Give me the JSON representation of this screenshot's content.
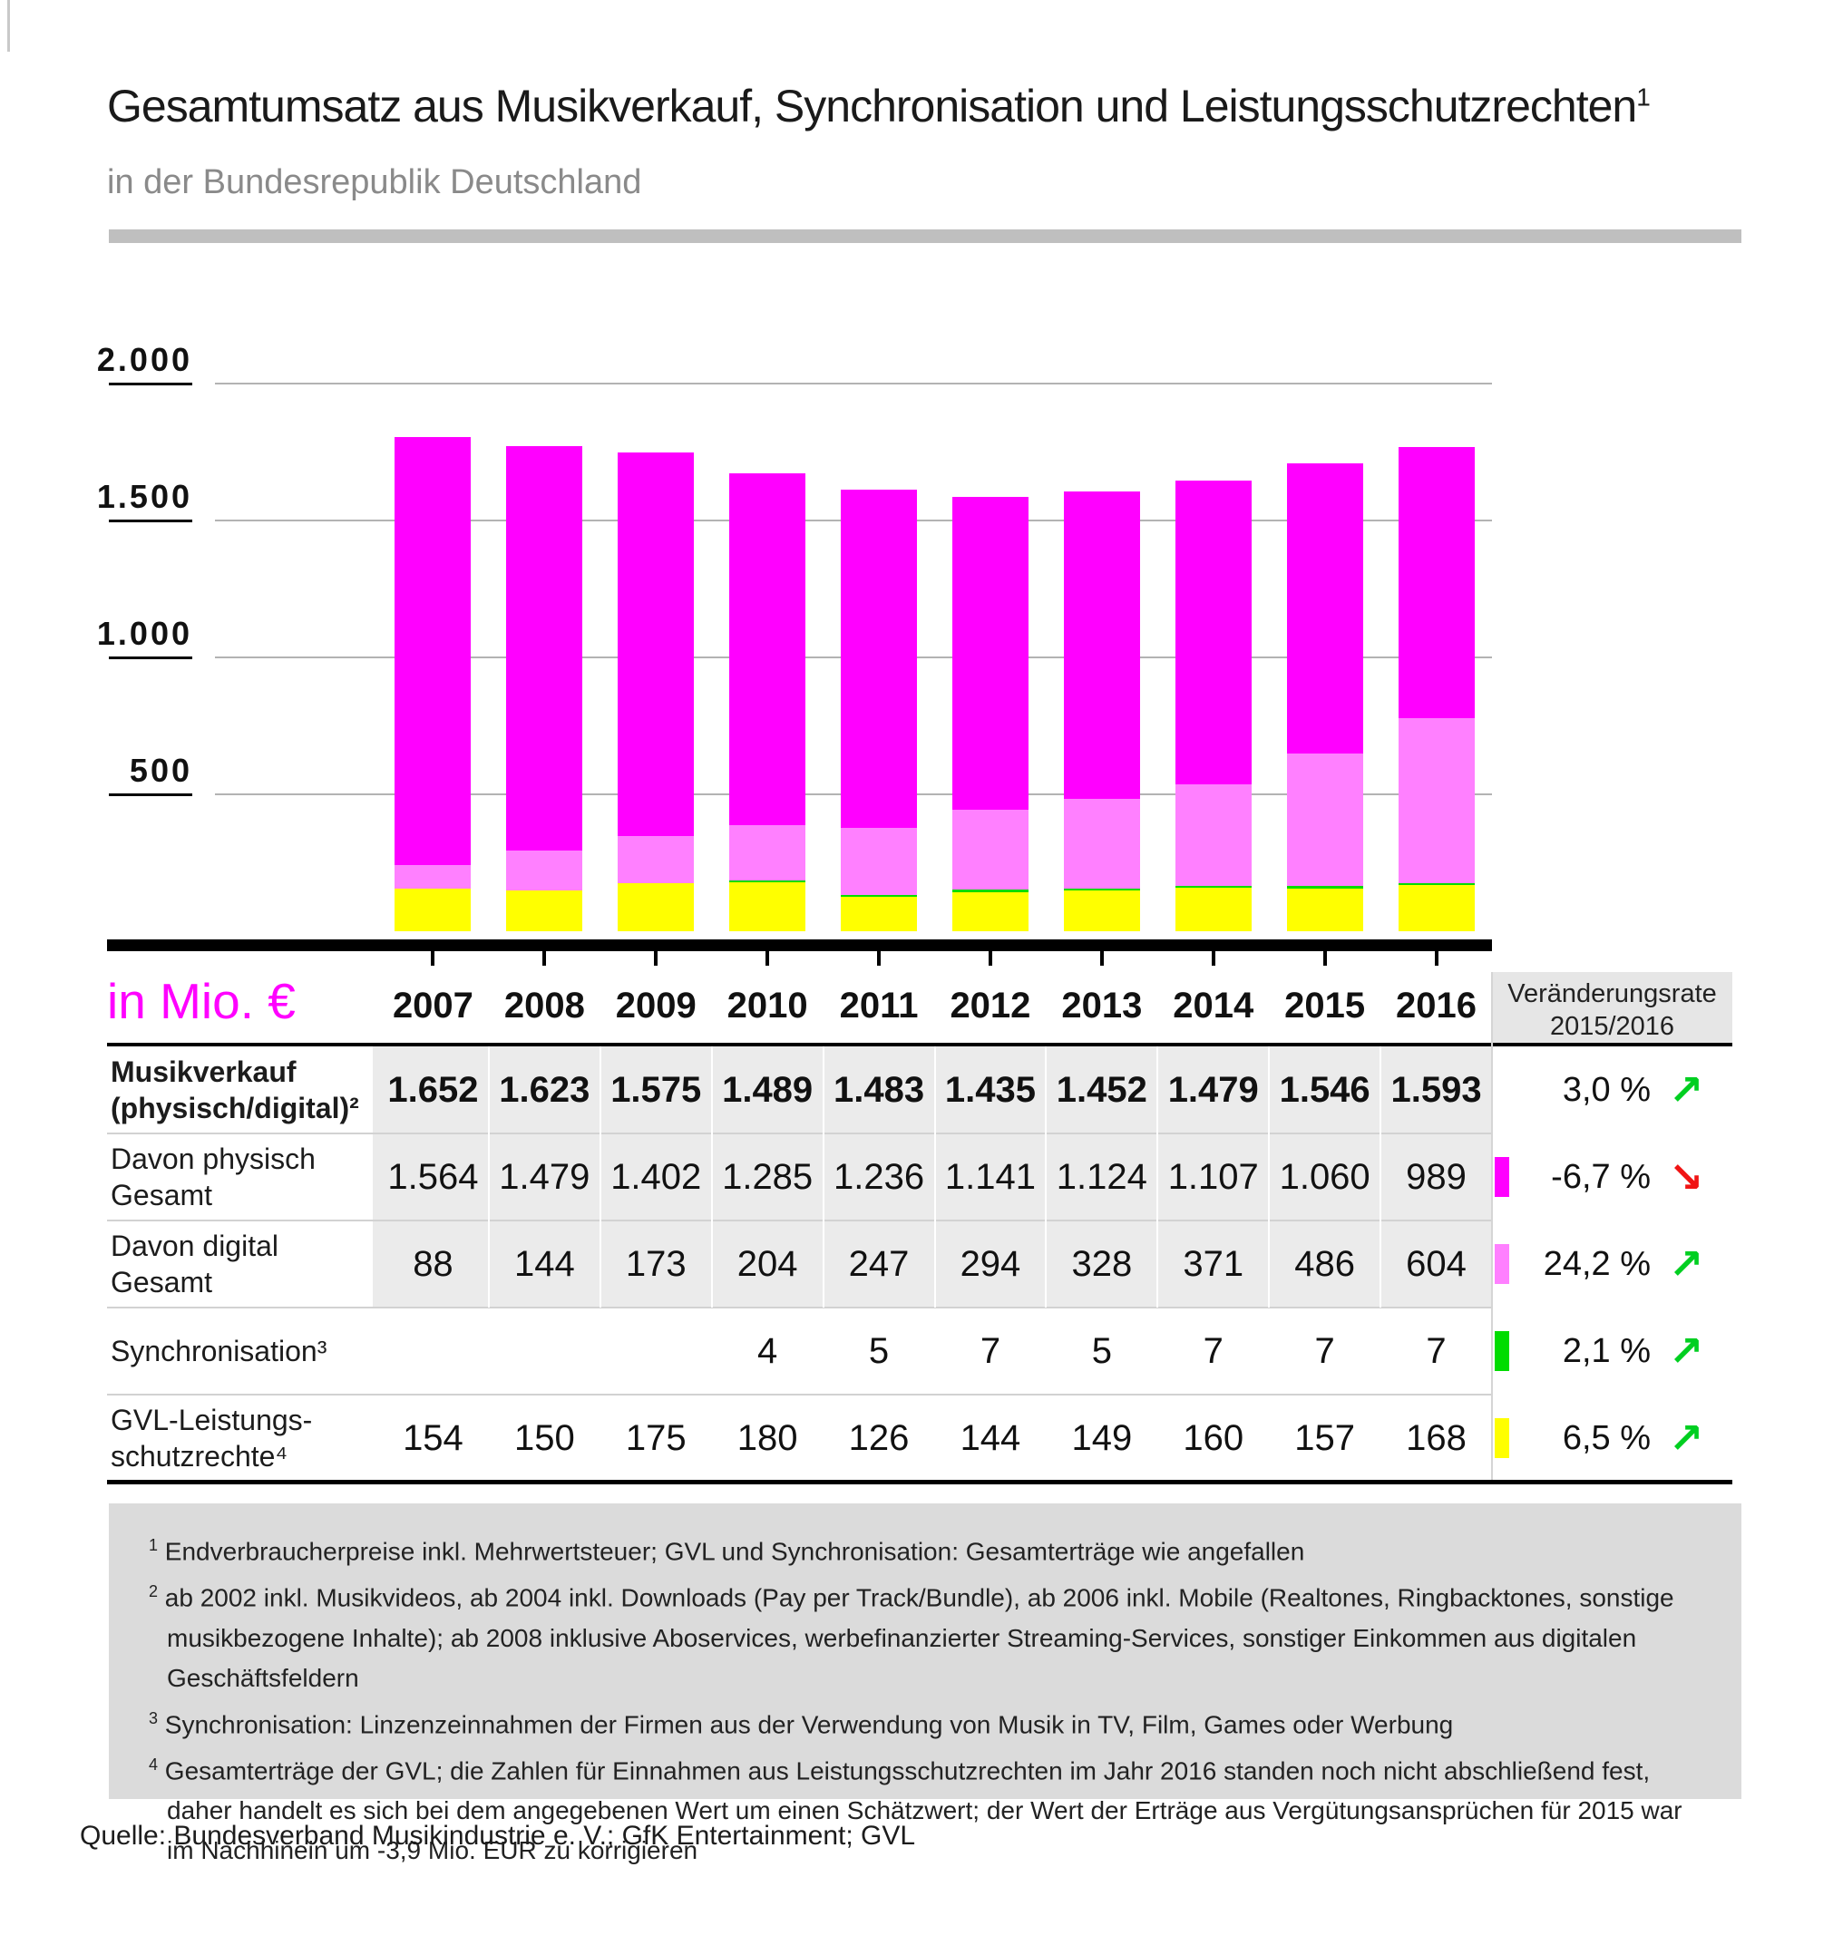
{
  "page": {
    "title": "Gesamtumsatz aus Musikverkauf, Synchronisation und Leistungsschutzrechten",
    "title_sup": "1",
    "subtitle": "in der Bundesrepublik Deutschland",
    "source": "Quelle: Bundesverband Musikindustrie e. V.; GfK Entertainment; GVL"
  },
  "chart_data": {
    "type": "bar",
    "stacked": true,
    "title": "Gesamtumsatz aus Musikverkauf, Synchronisation und Leistungsschutzrechten",
    "subtitle": "in der Bundesrepublik Deutschland",
    "unit_label": "in Mio. €",
    "categories": [
      "2007",
      "2008",
      "2009",
      "2010",
      "2011",
      "2012",
      "2013",
      "2014",
      "2015",
      "2016"
    ],
    "series": [
      {
        "name": "GVL-Leistungsschutzrechte",
        "color": "#ffff00",
        "values": [
          154,
          150,
          175,
          180,
          126,
          144,
          149,
          160,
          157,
          168
        ]
      },
      {
        "name": "Synchronisation",
        "color": "#00dc00",
        "values": [
          0,
          0,
          0,
          4,
          5,
          7,
          5,
          7,
          7,
          7
        ]
      },
      {
        "name": "Davon digital Gesamt",
        "color": "#ff80ff",
        "values": [
          88,
          144,
          173,
          204,
          247,
          294,
          328,
          371,
          486,
          604
        ]
      },
      {
        "name": "Davon physisch Gesamt",
        "color": "#ff00ff",
        "values": [
          1564,
          1479,
          1402,
          1285,
          1236,
          1141,
          1124,
          1107,
          1060,
          989
        ]
      }
    ],
    "ylim": [
      0,
      2000
    ],
    "yticks": [
      {
        "value": 2000,
        "label": "2.000"
      },
      {
        "value": 1500,
        "label": "1.500"
      },
      {
        "value": 1000,
        "label": "1.000"
      },
      {
        "value": 500,
        "label": "500"
      }
    ],
    "grid": true,
    "legend_position": "none"
  },
  "table": {
    "change_header_line1": "Veränderungsrate",
    "change_header_line2": "2015/2016",
    "rows": [
      {
        "label_lines": [
          "Musikverkauf",
          "(physisch/digital)²"
        ],
        "bold": true,
        "shaded": true,
        "values": [
          "1.652",
          "1.623",
          "1.575",
          "1.489",
          "1.483",
          "1.435",
          "1.452",
          "1.479",
          "1.546",
          "1.593"
        ],
        "swatch": null,
        "change": "3,0 %",
        "trend": "up"
      },
      {
        "label_lines": [
          "Davon physisch",
          "Gesamt"
        ],
        "bold": false,
        "shaded": true,
        "values": [
          "1.564",
          "1.479",
          "1.402",
          "1.285",
          "1.236",
          "1.141",
          "1.124",
          "1.107",
          "1.060",
          "989"
        ],
        "swatch": "#ff00ff",
        "change": "-6,7 %",
        "trend": "down"
      },
      {
        "label_lines": [
          "Davon digital",
          "Gesamt"
        ],
        "bold": false,
        "shaded": true,
        "values": [
          "88",
          "144",
          "173",
          "204",
          "247",
          "294",
          "328",
          "371",
          "486",
          "604"
        ],
        "swatch": "#ff80ff",
        "change": "24,2 %",
        "trend": "up"
      },
      {
        "label_lines": [
          "Synchronisation³"
        ],
        "bold": false,
        "shaded": false,
        "values": [
          "",
          "",
          "",
          "4",
          "5",
          "7",
          "5",
          "7",
          "7",
          "7"
        ],
        "swatch": "#00dc00",
        "change": "2,1 %",
        "trend": "up"
      },
      {
        "label_lines": [
          "GVL-Leistungs-",
          "schutzrechte⁴"
        ],
        "bold": false,
        "shaded": false,
        "values": [
          "154",
          "150",
          "175",
          "180",
          "126",
          "144",
          "149",
          "160",
          "157",
          "168"
        ],
        "swatch": "#ffff00",
        "change": "6,5 %",
        "trend": "up"
      }
    ]
  },
  "footnotes": [
    {
      "marker": "1",
      "text": "Endverbraucherpreise inkl. Mehrwertsteuer; GVL und Synchronisation: Gesamterträge wie angefallen"
    },
    {
      "marker": "2",
      "text": "ab 2002 inkl. Musikvideos, ab 2004 inkl. Downloads (Pay per Track/Bundle), ab 2006 inkl. Mobile (Realtones, Ringbacktones, sonstige musikbezogene Inhalte); ab 2008 inklusive Aboservices, werbefinanzierter Streaming-Services, sonstiger Einkommen aus digitalen Geschäftsfeldern"
    },
    {
      "marker": "3",
      "text": "Synchronisation: Linzenzeinnahmen der Firmen aus der Verwendung von Musik in TV, Film, Games oder Werbung"
    },
    {
      "marker": "4",
      "text": "Gesamterträge der GVL; die Zahlen für Einnahmen aus Leistungsschutzrechten im Jahr 2016 standen noch nicht abschließend fest, daher handelt es sich bei dem angegebenen Wert um einen Schätzwert; der Wert der Erträge aus Vergütungsansprüchen für 2015 war im Nachhinein um -3,9 Mio. EUR zu korrigieren"
    }
  ],
  "icons": {
    "up": "↗",
    "down": "↘"
  },
  "colors": {
    "trend_up": "#00cf21",
    "trend_down": "#f01414",
    "unit_label": "#ff00ff",
    "physisch": "#ff00ff",
    "digital": "#ff80ff",
    "synchronisation": "#00dc00",
    "gvl": "#ffff00"
  }
}
